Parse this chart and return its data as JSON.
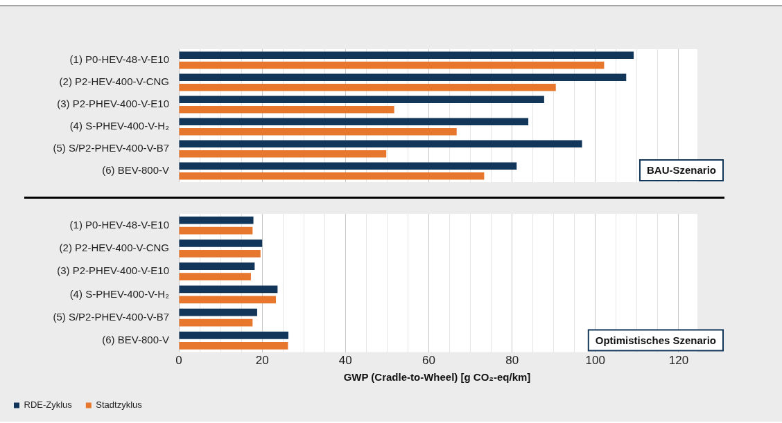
{
  "chart_data": [
    {
      "type": "bar",
      "orientation": "horizontal",
      "categories": [
        "(1) P0-HEV-48-V-E10",
        "(2) P2-HEV-400-V-CNG",
        "(3) P2-PHEV-400-V-E10",
        "(4) S-PHEV-400-V-H₂",
        "(5) S/P2-PHEV-400-V-B7",
        "(6) BEV-800-V"
      ],
      "series": [
        {
          "color": "#12365a",
          "values": [
            109.2,
            107.4,
            87.7,
            83.9,
            96.8,
            81.1
          ]
        },
        {
          "color": "#e8772e",
          "values": [
            102.1,
            90.5,
            51.7,
            66.7,
            49.8,
            73.3
          ]
        }
      ],
      "xlim": [
        0,
        124
      ],
      "xticks": [
        0,
        {
          "value": 5,
          "label": null
        },
        {
          "value": 10,
          "label": null
        },
        {
          "value": 15,
          "label": null
        },
        20,
        {
          "value": 25,
          "label": null
        },
        {
          "value": 30,
          "label": null
        },
        {
          "value": 35,
          "label": null
        },
        40,
        {
          "value": 45,
          "label": null
        },
        {
          "value": 50,
          "label": null
        },
        {
          "value": 55,
          "label": null
        },
        60,
        {
          "value": 65,
          "label": null
        },
        {
          "value": 70,
          "label": null
        },
        {
          "value": 75,
          "label": null
        },
        80,
        {
          "value": 85,
          "label": null
        },
        {
          "value": 90,
          "label": null
        },
        {
          "value": 95,
          "label": null
        },
        100,
        {
          "value": 105,
          "label": null
        },
        {
          "value": 110,
          "label": null
        },
        {
          "value": 115,
          "label": null
        },
        120
      ],
      "grid": "x",
      "tick_labels": "y",
      "legend": false,
      "annotations": [
        "BAU-Szenario"
      ]
    },
    {
      "type": "bar",
      "orientation": "horizontal",
      "categories": [
        "(1) P0-HEV-48-V-E10",
        "(2) P2-HEV-400-V-CNG",
        "(3) P2-PHEV-400-V-E10",
        "(4) S-PHEV-400-V-H₂",
        "(5) S/P2-PHEV-400-V-B7",
        "(6) BEV-800-V"
      ],
      "series": [
        {
          "name": "RDE-Zyklus",
          "color": "#12365a",
          "values": [
            17.9,
            20.0,
            18.2,
            23.7,
            18.8,
            26.3
          ]
        },
        {
          "name": "Stadtzyklus",
          "color": "#e8772e",
          "values": [
            17.7,
            19.6,
            17.3,
            23.3,
            17.7,
            26.2
          ]
        }
      ],
      "xlim": [
        0,
        124
      ],
      "xticks": [
        0,
        {
          "value": 5,
          "label": null
        },
        {
          "value": 10,
          "label": null
        },
        {
          "value": 15,
          "label": null
        },
        20,
        {
          "value": 25,
          "label": null
        },
        {
          "value": 30,
          "label": null
        },
        {
          "value": 35,
          "label": null
        },
        40,
        {
          "value": 45,
          "label": null
        },
        {
          "value": 50,
          "label": null
        },
        {
          "value": 55,
          "label": null
        },
        60,
        {
          "value": 65,
          "label": null
        },
        {
          "value": 70,
          "label": null
        },
        {
          "value": 75,
          "label": null
        },
        80,
        {
          "value": 85,
          "label": null
        },
        {
          "value": 90,
          "label": null
        },
        {
          "value": 95,
          "label": null
        },
        100,
        {
          "value": 105,
          "label": null
        },
        {
          "value": 110,
          "label": null
        },
        {
          "value": 115,
          "label": null
        },
        120
      ],
      "xlabel": "GWP (Cradle-to-Wheel) [g CO₂-eq/km]",
      "grid": "x",
      "legend": "bottom left",
      "annotations": [
        "Optimistisches Szenario"
      ]
    }
  ]
}
